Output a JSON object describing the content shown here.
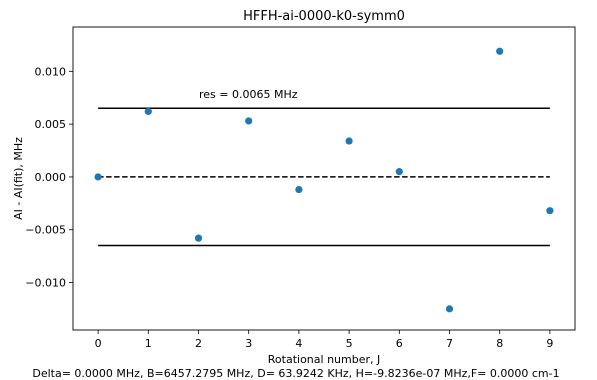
{
  "chart_data": {
    "type": "scatter",
    "title": "HFFH-ai-0000-k0-symm0",
    "xlabel": "Rational number, J",
    "xlabel_text": "Rotational number, J",
    "ylabel": "AI - AI(fit), MHz",
    "footer": "Delta=  0.0000 MHz, B=6457.2795 MHz, D= 63.9242 KHz, H=-9.8236e-07 MHz,F=  0.0000 cm-1",
    "annotation": "res =   0.0065 MHz",
    "xlim": [
      -0.5,
      9.5
    ],
    "ylim": [
      -0.0145,
      0.0142
    ],
    "xticks": [
      0,
      1,
      2,
      3,
      4,
      5,
      6,
      7,
      8,
      9
    ],
    "yticks": [
      -0.01,
      -0.005,
      0.0,
      0.005,
      0.01
    ],
    "ytick_labels": [
      "−0.010",
      "−0.005",
      "0.000",
      "0.005",
      "0.010"
    ],
    "x": [
      0,
      1,
      2,
      3,
      4,
      5,
      6,
      7,
      8,
      9
    ],
    "y": [
      0.0,
      0.0062,
      -0.0058,
      0.0053,
      -0.0012,
      0.0034,
      0.0005,
      -0.0125,
      0.0119,
      -0.0032
    ],
    "hlines": [
      {
        "y": 0.0065,
        "style": "solid"
      },
      {
        "y": 0.0,
        "style": "dashed"
      },
      {
        "y": -0.0065,
        "style": "solid"
      }
    ],
    "hline_xrange": [
      0,
      9
    ],
    "grid": false,
    "marker_color": "#1f77b4"
  }
}
